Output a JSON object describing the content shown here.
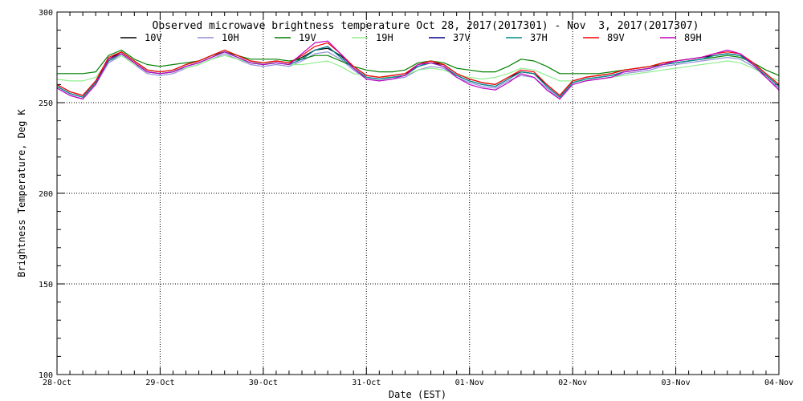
{
  "chart_data": {
    "type": "line",
    "title": "Observed microwave brightness temperature Oct 28, 2017(2017301) - Nov  3, 2017(2017307)",
    "xlabel": "Date (EST)",
    "ylabel": "Brightness Temperature, Deg K",
    "ylim": [
      100,
      300
    ],
    "yticks": [
      100,
      150,
      200,
      250,
      300
    ],
    "xlim": [
      "2017-10-28",
      "2017-11-04"
    ],
    "x_tick_labels": [
      "28-Oct",
      "29-Oct",
      "30-Oct",
      "31-Oct",
      "01-Nov",
      "02-Nov",
      "03-Nov",
      "04-Nov"
    ],
    "grid": true,
    "legend_position": "top",
    "x": [
      "2017-10-28 00:00",
      "2017-10-28 03:00",
      "2017-10-28 06:00",
      "2017-10-28 09:00",
      "2017-10-28 12:00",
      "2017-10-28 15:00",
      "2017-10-28 18:00",
      "2017-10-28 21:00",
      "2017-10-29 00:00",
      "2017-10-29 03:00",
      "2017-10-29 06:00",
      "2017-10-29 09:00",
      "2017-10-29 12:00",
      "2017-10-29 15:00",
      "2017-10-29 18:00",
      "2017-10-29 21:00",
      "2017-10-30 00:00",
      "2017-10-30 03:00",
      "2017-10-30 06:00",
      "2017-10-30 09:00",
      "2017-10-30 12:00",
      "2017-10-30 15:00",
      "2017-10-30 18:00",
      "2017-10-30 21:00",
      "2017-10-31 00:00",
      "2017-10-31 03:00",
      "2017-10-31 06:00",
      "2017-10-31 09:00",
      "2017-10-31 12:00",
      "2017-10-31 15:00",
      "2017-10-31 18:00",
      "2017-10-31 21:00",
      "2017-11-01 00:00",
      "2017-11-01 03:00",
      "2017-11-01 06:00",
      "2017-11-01 09:00",
      "2017-11-01 12:00",
      "2017-11-01 15:00",
      "2017-11-01 18:00",
      "2017-11-01 21:00",
      "2017-11-02 00:00",
      "2017-11-02 03:00",
      "2017-11-02 06:00",
      "2017-11-02 09:00",
      "2017-11-02 12:00",
      "2017-11-02 15:00",
      "2017-11-02 18:00",
      "2017-11-02 21:00",
      "2017-11-03 00:00",
      "2017-11-03 03:00",
      "2017-11-03 06:00",
      "2017-11-03 09:00",
      "2017-11-03 12:00",
      "2017-11-03 15:00",
      "2017-11-03 18:00",
      "2017-11-03 21:00",
      "2017-11-04 00:00"
    ],
    "series": [
      {
        "name": "10V",
        "color": "#000000",
        "values": [
          260,
          256,
          254,
          262,
          274,
          278,
          273,
          268,
          267,
          268,
          271,
          273,
          276,
          279,
          276,
          273,
          272,
          273,
          272,
          275,
          279,
          280,
          276,
          270,
          265,
          264,
          265,
          266,
          270,
          272,
          271,
          266,
          263,
          261,
          260,
          264,
          267,
          266,
          260,
          254,
          262,
          264,
          265,
          266,
          268,
          269,
          270,
          272,
          273,
          274,
          275,
          276,
          277,
          276,
          272,
          266,
          260
        ]
      },
      {
        "name": "10H",
        "color": "#8f8fd8",
        "values": [
          258,
          254,
          252,
          260,
          272,
          276,
          271,
          266,
          265,
          266,
          269,
          271,
          274,
          277,
          274,
          271,
          270,
          271,
          270,
          273,
          277,
          278,
          274,
          268,
          263,
          262,
          263,
          264,
          268,
          270,
          269,
          264,
          261,
          259,
          258,
          262,
          265,
          264,
          258,
          252,
          260,
          262,
          263,
          264,
          266,
          267,
          268,
          270,
          271,
          272,
          273,
          274,
          275,
          274,
          270,
          264,
          258
        ]
      },
      {
        "name": "19V",
        "color": "#008000",
        "values": [
          266,
          266,
          266,
          267,
          276,
          279,
          274,
          271,
          270,
          271,
          272,
          273,
          276,
          278,
          276,
          274,
          274,
          274,
          273,
          274,
          276,
          276,
          273,
          270,
          268,
          267,
          267,
          268,
          272,
          273,
          272,
          269,
          268,
          267,
          267,
          270,
          274,
          273,
          270,
          266,
          266,
          266,
          266,
          267,
          268,
          269,
          270,
          271,
          272,
          273,
          274,
          275,
          276,
          275,
          272,
          268,
          265
        ]
      },
      {
        "name": "19H",
        "color": "#90ee90",
        "values": [
          263,
          262,
          262,
          264,
          273,
          276,
          271,
          268,
          267,
          268,
          269,
          271,
          274,
          276,
          274,
          272,
          272,
          272,
          271,
          271,
          272,
          273,
          270,
          266,
          265,
          264,
          264,
          265,
          268,
          269,
          268,
          265,
          264,
          263,
          264,
          266,
          269,
          268,
          265,
          262,
          262,
          262,
          263,
          264,
          265,
          266,
          267,
          268,
          269,
          270,
          271,
          272,
          273,
          272,
          269,
          265,
          262
        ]
      },
      {
        "name": "37V",
        "color": "#00008b",
        "values": [
          259,
          255,
          253,
          261,
          273,
          277,
          272,
          267,
          266,
          267,
          270,
          272,
          275,
          278,
          275,
          272,
          271,
          272,
          271,
          274,
          279,
          281,
          275,
          269,
          264,
          263,
          264,
          265,
          270,
          272,
          270,
          265,
          262,
          260,
          259,
          263,
          267,
          266,
          259,
          253,
          261,
          263,
          264,
          265,
          267,
          268,
          269,
          271,
          272,
          273,
          274,
          276,
          277,
          276,
          271,
          265,
          259
        ]
      },
      {
        "name": "37H",
        "color": "#008b8b",
        "values": [
          259,
          255,
          253,
          261,
          273,
          277,
          272,
          267,
          266,
          267,
          270,
          272,
          275,
          278,
          275,
          272,
          271,
          272,
          271,
          274,
          279,
          281,
          275,
          269,
          264,
          263,
          264,
          265,
          270,
          272,
          270,
          265,
          262,
          260,
          259,
          263,
          267,
          266,
          259,
          253,
          261,
          263,
          264,
          265,
          267,
          268,
          269,
          271,
          272,
          273,
          274,
          276,
          277,
          276,
          271,
          265,
          259
        ]
      },
      {
        "name": "89V",
        "color": "#ff0000",
        "values": [
          260,
          256,
          254,
          262,
          275,
          278,
          273,
          268,
          267,
          268,
          271,
          273,
          276,
          279,
          276,
          273,
          272,
          273,
          272,
          276,
          281,
          283,
          277,
          270,
          265,
          264,
          265,
          266,
          271,
          273,
          271,
          266,
          263,
          261,
          260,
          264,
          268,
          267,
          260,
          254,
          262,
          264,
          265,
          266,
          268,
          269,
          270,
          272,
          273,
          274,
          275,
          277,
          278,
          277,
          272,
          266,
          260
        ]
      },
      {
        "name": "89H",
        "color": "#c000c0",
        "values": [
          258,
          254,
          252,
          260,
          274,
          277,
          272,
          267,
          266,
          267,
          270,
          272,
          275,
          278,
          275,
          272,
          271,
          272,
          271,
          277,
          283,
          284,
          277,
          269,
          263,
          262,
          263,
          265,
          271,
          272,
          270,
          264,
          260,
          258,
          257,
          261,
          266,
          264,
          257,
          252,
          260,
          262,
          263,
          264,
          267,
          268,
          269,
          271,
          273,
          274,
          275,
          277,
          279,
          277,
          271,
          264,
          257
        ]
      }
    ]
  }
}
